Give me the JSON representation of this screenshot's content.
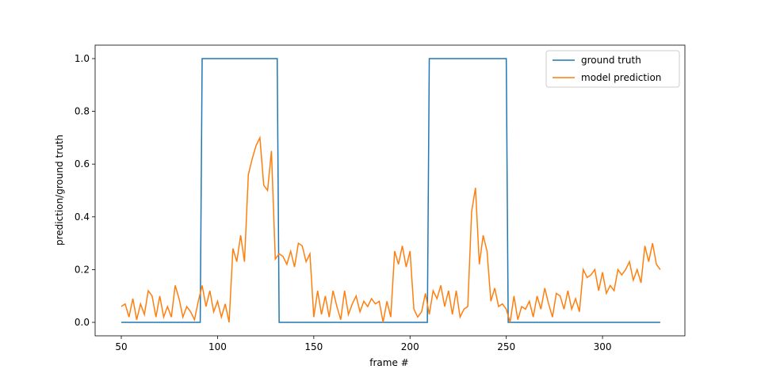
{
  "chart_data": {
    "type": "line",
    "xlabel": "frame #",
    "ylabel": "prediction/ground truth",
    "xlim": [
      36.4,
      342.8
    ],
    "ylim": [
      -0.051,
      1.051
    ],
    "xticks": [
      50,
      100,
      150,
      200,
      250,
      300
    ],
    "yticks": [
      {
        "value": 0,
        "label": "0.0"
      },
      0.2,
      0.4,
      0.6,
      0.8,
      {
        "value": 1,
        "label": "1.0"
      }
    ],
    "legend": "upper right",
    "series": [
      {
        "name": "ground truth",
        "color": "#1f77b4",
        "x": [
          50,
          91,
          92,
          131,
          132,
          209,
          210,
          250,
          251,
          330
        ],
        "values": [
          0,
          0,
          1,
          1,
          0,
          0,
          1,
          1,
          0,
          0
        ]
      },
      {
        "name": "model prediction",
        "color": "#ff7f0e",
        "x": [
          50,
          52,
          54,
          56,
          58,
          60,
          62,
          64,
          66,
          68,
          70,
          72,
          74,
          76,
          78,
          80,
          82,
          84,
          86,
          88,
          90,
          92,
          94,
          96,
          98,
          100,
          102,
          104,
          106,
          108,
          110,
          112,
          114,
          116,
          118,
          120,
          122,
          124,
          126,
          128,
          130,
          132,
          134,
          136,
          138,
          140,
          142,
          144,
          146,
          148,
          150,
          152,
          154,
          156,
          158,
          160,
          162,
          164,
          166,
          168,
          170,
          172,
          174,
          176,
          178,
          180,
          182,
          184,
          186,
          188,
          190,
          192,
          194,
          196,
          198,
          200,
          202,
          204,
          206,
          208,
          210,
          212,
          214,
          216,
          218,
          220,
          222,
          224,
          226,
          228,
          230,
          232,
          234,
          236,
          238,
          240,
          242,
          244,
          246,
          248,
          250,
          252,
          254,
          256,
          258,
          260,
          262,
          264,
          266,
          268,
          270,
          272,
          274,
          276,
          278,
          280,
          282,
          284,
          286,
          288,
          290,
          292,
          294,
          296,
          298,
          300,
          302,
          304,
          306,
          308,
          310,
          312,
          314,
          316,
          318,
          320,
          322,
          324,
          326,
          328,
          330
        ],
        "values": [
          0.06,
          0.07,
          0.02,
          0.09,
          0.01,
          0.07,
          0.03,
          0.12,
          0.1,
          0.02,
          0.1,
          0.02,
          0.06,
          0.02,
          0.14,
          0.09,
          0.02,
          0.06,
          0.04,
          0.01,
          0.08,
          0.14,
          0.06,
          0.12,
          0.04,
          0.08,
          0.02,
          0.07,
          0.0,
          0.28,
          0.23,
          0.33,
          0.23,
          0.56,
          0.62,
          0.67,
          0.7,
          0.52,
          0.5,
          0.65,
          0.24,
          0.26,
          0.25,
          0.22,
          0.27,
          0.21,
          0.3,
          0.29,
          0.23,
          0.26,
          0.02,
          0.12,
          0.03,
          0.1,
          0.02,
          0.12,
          0.06,
          0.01,
          0.12,
          0.03,
          0.07,
          0.1,
          0.04,
          0.08,
          0.06,
          0.09,
          0.07,
          0.08,
          0.0,
          0.08,
          0.02,
          0.27,
          0.22,
          0.29,
          0.21,
          0.27,
          0.05,
          0.02,
          0.04,
          0.11,
          0.03,
          0.12,
          0.09,
          0.14,
          0.06,
          0.12,
          0.03,
          0.12,
          0.02,
          0.05,
          0.06,
          0.42,
          0.51,
          0.22,
          0.33,
          0.27,
          0.08,
          0.13,
          0.06,
          0.07,
          0.05,
          0.0,
          0.1,
          0.01,
          0.06,
          0.05,
          0.08,
          0.02,
          0.1,
          0.05,
          0.13,
          0.07,
          0.02,
          0.11,
          0.1,
          0.05,
          0.12,
          0.05,
          0.09,
          0.04,
          0.2,
          0.17,
          0.18,
          0.2,
          0.12,
          0.19,
          0.11,
          0.14,
          0.12,
          0.2,
          0.18,
          0.2,
          0.23,
          0.16,
          0.2,
          0.15,
          0.29,
          0.23,
          0.3,
          0.22,
          0.2
        ]
      }
    ]
  }
}
